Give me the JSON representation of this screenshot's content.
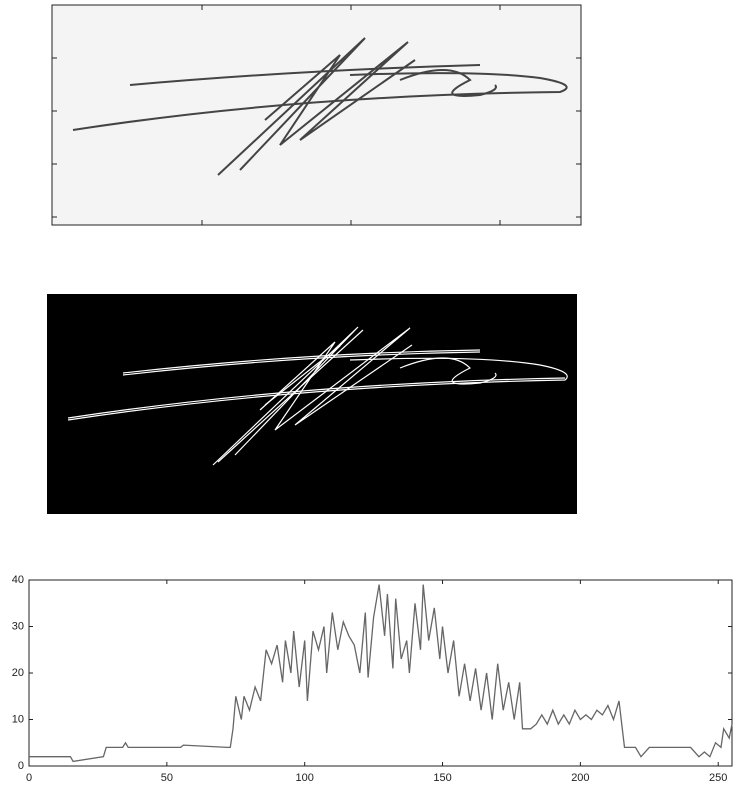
{
  "chart_data": {
    "type": "line",
    "x": [
      0,
      15,
      16,
      27,
      28,
      34,
      35,
      36,
      55,
      56,
      72,
      73,
      74,
      75,
      77,
      78,
      80,
      82,
      84,
      86,
      88,
      90,
      92,
      93,
      95,
      96,
      98,
      100,
      101,
      103,
      105,
      107,
      108,
      110,
      112,
      114,
      116,
      118,
      120,
      122,
      123,
      125,
      127,
      129,
      130,
      132,
      133,
      135,
      137,
      138,
      140,
      142,
      143,
      145,
      147,
      149,
      150,
      152,
      154,
      156,
      158,
      160,
      162,
      164,
      166,
      168,
      170,
      172,
      174,
      176,
      178,
      179,
      182,
      184,
      186,
      188,
      190,
      192,
      194,
      196,
      198,
      200,
      202,
      204,
      206,
      208,
      210,
      212,
      214,
      216,
      220,
      222,
      225,
      230,
      235,
      240,
      243,
      245,
      247,
      249,
      251,
      252,
      254,
      255
    ],
    "values": [
      2,
      2,
      1,
      2,
      4,
      4,
      5,
      4,
      4,
      4.5,
      4,
      4,
      8,
      15,
      10,
      15,
      12,
      17,
      14,
      25,
      22,
      26,
      18,
      27,
      20,
      29,
      17,
      27,
      14,
      29,
      25,
      30,
      20,
      33,
      25,
      31,
      28,
      26,
      20,
      33,
      19,
      32,
      39,
      28,
      37,
      21,
      36,
      23,
      27,
      20,
      35,
      25,
      39,
      27,
      34,
      23,
      30,
      20,
      27,
      15,
      22,
      14,
      21,
      12,
      20,
      10,
      22,
      12,
      18,
      10,
      18,
      8,
      8,
      9,
      11,
      9,
      12,
      9,
      11,
      9,
      12,
      10,
      11,
      10,
      12,
      11,
      13,
      10,
      14,
      4,
      4,
      2,
      4,
      4,
      4,
      4,
      2,
      3,
      2,
      5,
      4,
      8,
      6,
      9
    ],
    "color": "#666666",
    "xlim": [
      0,
      255
    ],
    "ylim": [
      0,
      40
    ],
    "xticks": [
      0,
      50,
      100,
      150,
      200,
      250
    ],
    "yticks": [
      0,
      10,
      20,
      30,
      40
    ]
  }
}
